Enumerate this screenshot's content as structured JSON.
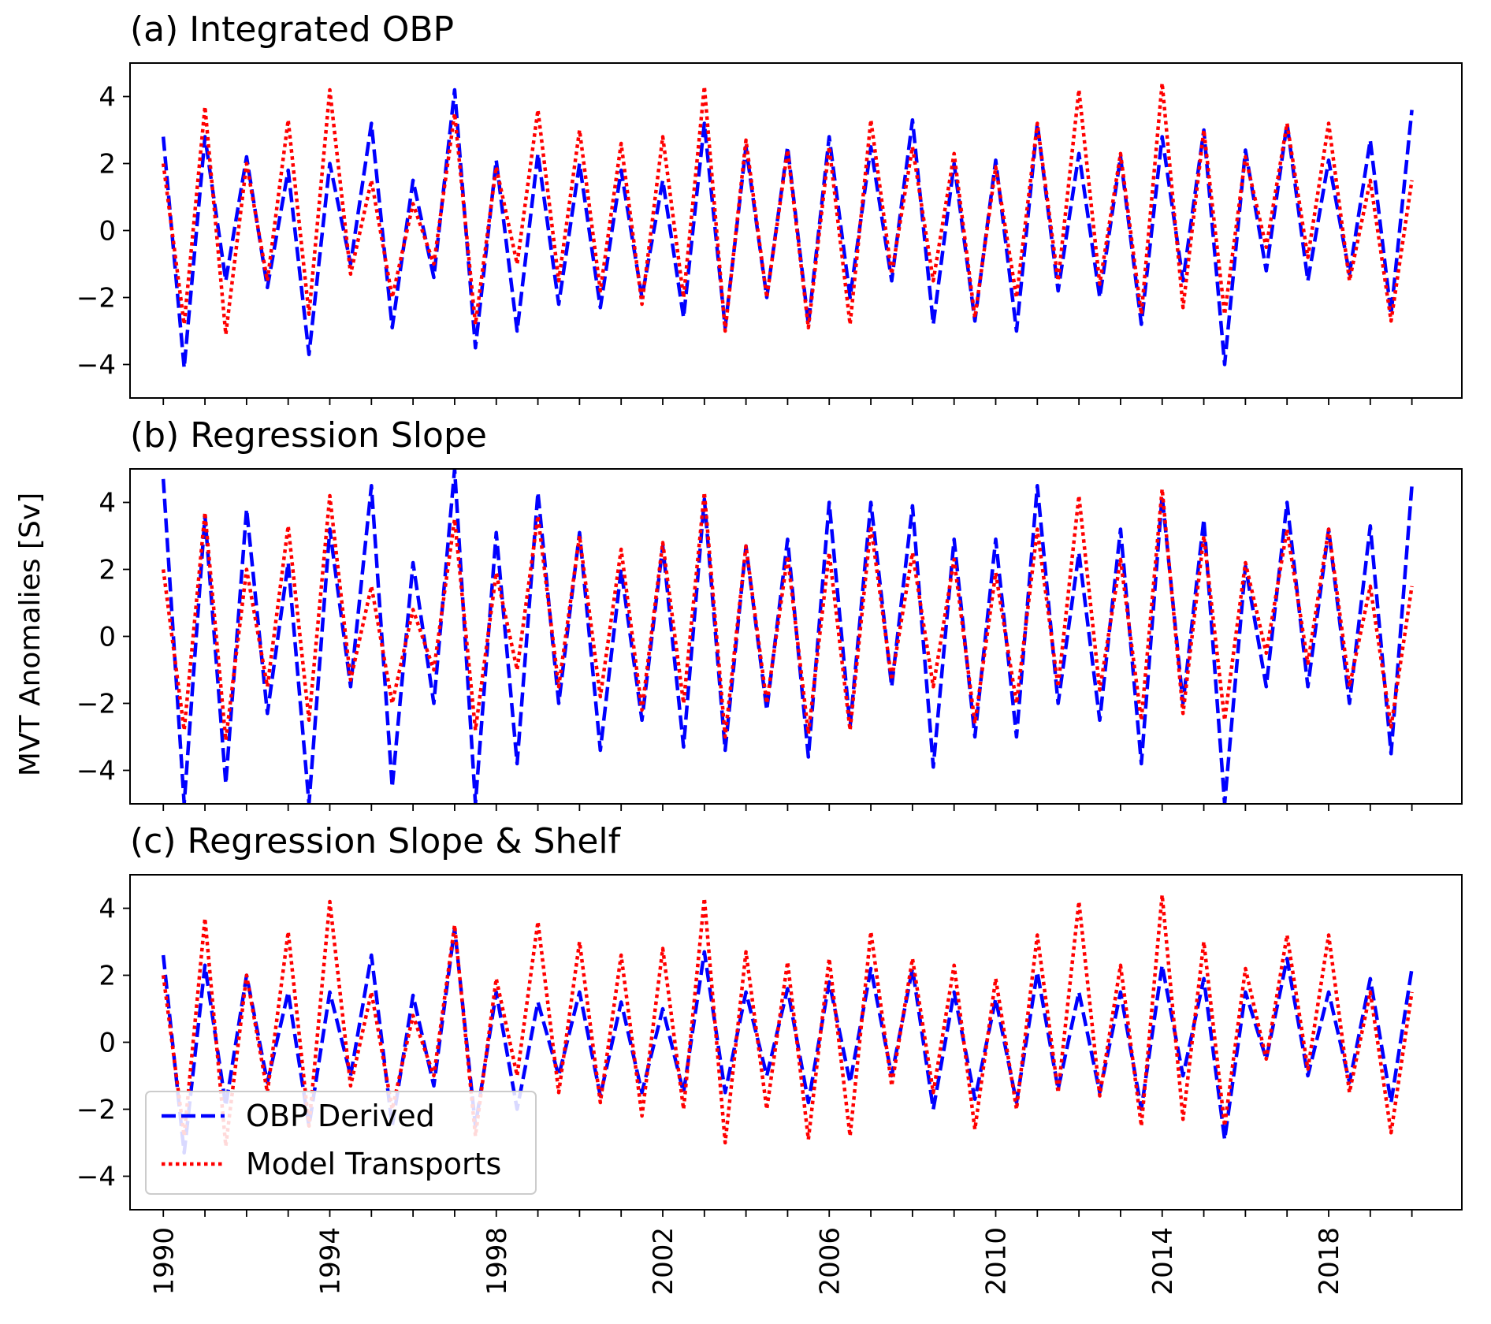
{
  "chart_data": [
    {
      "type": "line",
      "panel": "a",
      "title": "(a) Integrated OBP",
      "xlabel": "",
      "ylabel": "",
      "ylim": [
        -5,
        5
      ],
      "yticks": [
        -4,
        -2,
        0,
        2,
        4
      ],
      "series": [
        {
          "name": "OBP Derived",
          "color": "#0000ff",
          "style": "dashed",
          "x": [
            1990.0,
            1990.5,
            1991.0,
            1991.5,
            1992.0,
            1992.5,
            1993.0,
            1993.5,
            1994.0,
            1994.5,
            1995.0,
            1995.5,
            1996.0,
            1996.5,
            1997.0,
            1997.5,
            1998.0,
            1998.5,
            1999.0,
            1999.5,
            2000.0,
            2000.5,
            2001.0,
            2001.5,
            2002.0,
            2002.5,
            2003.0,
            2003.5,
            2004.0,
            2004.5,
            2005.0,
            2005.5,
            2006.0,
            2006.5,
            2007.0,
            2007.5,
            2008.0,
            2008.5,
            2009.0,
            2009.5,
            2010.0,
            2010.5,
            2011.0,
            2011.5,
            2012.0,
            2012.5,
            2013.0,
            2013.5,
            2014.0,
            2014.5,
            2015.0,
            2015.5,
            2016.0,
            2016.5,
            2017.0,
            2017.5,
            2018.0,
            2018.5,
            2019.0,
            2019.5,
            2020.0
          ],
          "y": [
            2.8,
            -4.1,
            2.8,
            -1.5,
            2.2,
            -1.7,
            1.8,
            -3.7,
            2.0,
            -1.0,
            3.2,
            -2.9,
            1.5,
            -1.4,
            4.2,
            -3.5,
            2.1,
            -3.0,
            2.3,
            -2.2,
            2.0,
            -2.3,
            1.8,
            -2.0,
            1.5,
            -2.6,
            3.2,
            -2.9,
            2.5,
            -2.0,
            2.5,
            -2.8,
            2.8,
            -2.0,
            2.5,
            -1.5,
            3.3,
            -2.8,
            2.0,
            -2.7,
            2.1,
            -3.0,
            3.2,
            -1.8,
            2.3,
            -2.0,
            2.2,
            -2.8,
            2.8,
            -1.5,
            3.0,
            -4.0,
            2.4,
            -1.2,
            3.2,
            -1.5,
            2.1,
            -1.3,
            2.7,
            -2.5,
            3.6
          ]
        },
        {
          "name": "Model Transports",
          "color": "#ff0000",
          "style": "dotted",
          "x": [
            1990.0,
            1990.5,
            1991.0,
            1991.5,
            1992.0,
            1992.5,
            1993.0,
            1993.5,
            1994.0,
            1994.5,
            1995.0,
            1995.5,
            1996.0,
            1996.5,
            1997.0,
            1997.5,
            1998.0,
            1998.5,
            1999.0,
            1999.5,
            2000.0,
            2000.5,
            2001.0,
            2001.5,
            2002.0,
            2002.5,
            2003.0,
            2003.5,
            2004.0,
            2004.5,
            2005.0,
            2005.5,
            2006.0,
            2006.5,
            2007.0,
            2007.5,
            2008.0,
            2008.5,
            2009.0,
            2009.5,
            2010.0,
            2010.5,
            2011.0,
            2011.5,
            2012.0,
            2012.5,
            2013.0,
            2013.5,
            2014.0,
            2014.5,
            2015.0,
            2015.5,
            2016.0,
            2016.5,
            2017.0,
            2017.5,
            2018.0,
            2018.5,
            2019.0,
            2019.5,
            2020.0
          ],
          "y": [
            2.0,
            -2.8,
            3.7,
            -3.1,
            2.0,
            -1.5,
            3.3,
            -2.5,
            4.2,
            -1.3,
            1.5,
            -2.0,
            0.8,
            -1.0,
            3.5,
            -2.8,
            1.9,
            -1.0,
            3.6,
            -1.5,
            3.0,
            -1.8,
            2.6,
            -2.2,
            2.8,
            -2.0,
            4.3,
            -3.0,
            2.7,
            -2.0,
            2.4,
            -2.9,
            2.5,
            -2.8,
            3.3,
            -1.3,
            2.5,
            -1.5,
            2.3,
            -2.6,
            1.9,
            -2.0,
            3.2,
            -1.5,
            4.2,
            -1.6,
            2.3,
            -2.5,
            4.4,
            -2.3,
            3.0,
            -2.5,
            2.2,
            -0.5,
            3.2,
            -0.8,
            3.2,
            -1.5,
            1.5,
            -2.7,
            1.5
          ]
        }
      ]
    },
    {
      "type": "line",
      "panel": "b",
      "title": "(b) Regression Slope",
      "xlabel": "",
      "ylabel": "MVT Anomalies [Sv]",
      "ylim": [
        -5,
        5
      ],
      "yticks": [
        -4,
        -2,
        0,
        2,
        4
      ],
      "series": [
        {
          "name": "OBP Derived",
          "color": "#0000ff",
          "style": "dashed",
          "x": [
            1990.0,
            1990.5,
            1991.0,
            1991.5,
            1992.0,
            1992.5,
            1993.0,
            1993.5,
            1994.0,
            1994.5,
            1995.0,
            1995.5,
            1996.0,
            1996.5,
            1997.0,
            1997.5,
            1998.0,
            1998.5,
            1999.0,
            1999.5,
            2000.0,
            2000.5,
            2001.0,
            2001.5,
            2002.0,
            2002.5,
            2003.0,
            2003.5,
            2004.0,
            2004.5,
            2005.0,
            2005.5,
            2006.0,
            2006.5,
            2007.0,
            2007.5,
            2008.0,
            2008.5,
            2009.0,
            2009.5,
            2010.0,
            2010.5,
            2011.0,
            2011.5,
            2012.0,
            2012.5,
            2013.0,
            2013.5,
            2014.0,
            2014.5,
            2015.0,
            2015.5,
            2016.0,
            2016.5,
            2017.0,
            2017.5,
            2018.0,
            2018.5,
            2019.0,
            2019.5,
            2020.0
          ],
          "y": [
            4.7,
            -5.0,
            3.6,
            -4.4,
            3.8,
            -2.3,
            2.2,
            -5.0,
            3.2,
            -1.5,
            4.5,
            -4.5,
            2.2,
            -2.0,
            5.0,
            -5.0,
            3.1,
            -3.8,
            4.3,
            -2.0,
            3.1,
            -3.4,
            2.0,
            -2.5,
            2.7,
            -3.3,
            4.1,
            -3.4,
            2.7,
            -2.2,
            2.9,
            -3.6,
            4.0,
            -2.7,
            4.0,
            -1.5,
            3.9,
            -3.9,
            2.9,
            -3.0,
            2.9,
            -3.0,
            4.5,
            -2.0,
            2.5,
            -2.5,
            3.2,
            -3.8,
            4.2,
            -2.0,
            3.5,
            -5.0,
            2.1,
            -1.5,
            4.0,
            -1.5,
            3.2,
            -2.0,
            3.3,
            -3.5,
            4.5
          ]
        },
        {
          "name": "Model Transports",
          "color": "#ff0000",
          "style": "dotted",
          "x": [
            1990.0,
            1990.5,
            1991.0,
            1991.5,
            1992.0,
            1992.5,
            1993.0,
            1993.5,
            1994.0,
            1994.5,
            1995.0,
            1995.5,
            1996.0,
            1996.5,
            1997.0,
            1997.5,
            1998.0,
            1998.5,
            1999.0,
            1999.5,
            2000.0,
            2000.5,
            2001.0,
            2001.5,
            2002.0,
            2002.5,
            2003.0,
            2003.5,
            2004.0,
            2004.5,
            2005.0,
            2005.5,
            2006.0,
            2006.5,
            2007.0,
            2007.5,
            2008.0,
            2008.5,
            2009.0,
            2009.5,
            2010.0,
            2010.5,
            2011.0,
            2011.5,
            2012.0,
            2012.5,
            2013.0,
            2013.5,
            2014.0,
            2014.5,
            2015.0,
            2015.5,
            2016.0,
            2016.5,
            2017.0,
            2017.5,
            2018.0,
            2018.5,
            2019.0,
            2019.5,
            2020.0
          ],
          "y": [
            2.0,
            -2.8,
            3.7,
            -3.1,
            2.0,
            -1.5,
            3.3,
            -2.5,
            4.2,
            -1.3,
            1.5,
            -2.0,
            0.8,
            -1.0,
            3.5,
            -2.8,
            1.9,
            -1.0,
            3.6,
            -1.5,
            3.0,
            -1.8,
            2.6,
            -2.2,
            2.8,
            -2.0,
            4.3,
            -3.0,
            2.7,
            -2.0,
            2.4,
            -2.9,
            2.5,
            -2.8,
            3.3,
            -1.3,
            2.5,
            -1.5,
            2.3,
            -2.6,
            1.9,
            -2.0,
            3.2,
            -1.5,
            4.2,
            -1.6,
            2.3,
            -2.5,
            4.4,
            -2.3,
            3.0,
            -2.5,
            2.2,
            -0.5,
            3.2,
            -0.8,
            3.2,
            -1.5,
            1.5,
            -2.7,
            1.5
          ]
        }
      ]
    },
    {
      "type": "line",
      "panel": "c",
      "title": "(c) Regression Slope & Shelf",
      "xlabel": "",
      "ylabel": "",
      "ylim": [
        -5,
        5
      ],
      "yticks": [
        -4,
        -2,
        0,
        2,
        4
      ],
      "xticks": [
        "1990",
        "1994",
        "1998",
        "2002",
        "2006",
        "2010",
        "2014",
        "2018"
      ],
      "legend": {
        "location": "lower-left",
        "entries": [
          "OBP Derived",
          "Model Transports"
        ]
      },
      "series": [
        {
          "name": "OBP Derived",
          "color": "#0000ff",
          "style": "dashed",
          "x": [
            1990.0,
            1990.5,
            1991.0,
            1991.5,
            1992.0,
            1992.5,
            1993.0,
            1993.5,
            1994.0,
            1994.5,
            1995.0,
            1995.5,
            1996.0,
            1996.5,
            1997.0,
            1997.5,
            1998.0,
            1998.5,
            1999.0,
            1999.5,
            2000.0,
            2000.5,
            2001.0,
            2001.5,
            2002.0,
            2002.5,
            2003.0,
            2003.5,
            2004.0,
            2004.5,
            2005.0,
            2005.5,
            2006.0,
            2006.5,
            2007.0,
            2007.5,
            2008.0,
            2008.5,
            2009.0,
            2009.5,
            2010.0,
            2010.5,
            2011.0,
            2011.5,
            2012.0,
            2012.5,
            2013.0,
            2013.5,
            2014.0,
            2014.5,
            2015.0,
            2015.5,
            2016.0,
            2016.5,
            2017.0,
            2017.5,
            2018.0,
            2018.5,
            2019.0,
            2019.5,
            2020.0
          ],
          "y": [
            2.6,
            -3.3,
            2.3,
            -1.9,
            2.0,
            -1.2,
            1.5,
            -2.5,
            1.5,
            -1.0,
            2.6,
            -2.5,
            1.4,
            -1.3,
            3.4,
            -2.5,
            1.5,
            -2.0,
            1.2,
            -1.0,
            1.5,
            -1.6,
            1.2,
            -1.5,
            1.0,
            -1.5,
            2.7,
            -1.5,
            1.5,
            -1.0,
            1.6,
            -1.8,
            1.8,
            -1.2,
            2.2,
            -1.0,
            2.2,
            -2.0,
            1.5,
            -1.7,
            1.3,
            -1.8,
            2.1,
            -1.4,
            1.5,
            -1.5,
            1.5,
            -2.0,
            2.3,
            -1.0,
            1.9,
            -2.9,
            1.5,
            -0.5,
            2.5,
            -1.0,
            1.5,
            -1.2,
            1.9,
            -1.8,
            2.2
          ]
        },
        {
          "name": "Model Transports",
          "color": "#ff0000",
          "style": "dotted",
          "x": [
            1990.0,
            1990.5,
            1991.0,
            1991.5,
            1992.0,
            1992.5,
            1993.0,
            1993.5,
            1994.0,
            1994.5,
            1995.0,
            1995.5,
            1996.0,
            1996.5,
            1997.0,
            1997.5,
            1998.0,
            1998.5,
            1999.0,
            1999.5,
            2000.0,
            2000.5,
            2001.0,
            2001.5,
            2002.0,
            2002.5,
            2003.0,
            2003.5,
            2004.0,
            2004.5,
            2005.0,
            2005.5,
            2006.0,
            2006.5,
            2007.0,
            2007.5,
            2008.0,
            2008.5,
            2009.0,
            2009.5,
            2010.0,
            2010.5,
            2011.0,
            2011.5,
            2012.0,
            2012.5,
            2013.0,
            2013.5,
            2014.0,
            2014.5,
            2015.0,
            2015.5,
            2016.0,
            2016.5,
            2017.0,
            2017.5,
            2018.0,
            2018.5,
            2019.0,
            2019.5,
            2020.0
          ],
          "y": [
            2.0,
            -2.8,
            3.7,
            -3.1,
            2.0,
            -1.5,
            3.3,
            -2.5,
            4.2,
            -1.3,
            1.5,
            -2.0,
            0.8,
            -1.0,
            3.5,
            -2.8,
            1.9,
            -1.0,
            3.6,
            -1.5,
            3.0,
            -1.8,
            2.6,
            -2.2,
            2.8,
            -2.0,
            4.3,
            -3.0,
            2.7,
            -2.0,
            2.4,
            -2.9,
            2.5,
            -2.8,
            3.3,
            -1.3,
            2.5,
            -1.5,
            2.3,
            -2.6,
            1.9,
            -2.0,
            3.2,
            -1.5,
            4.2,
            -1.6,
            2.3,
            -2.5,
            4.4,
            -2.3,
            3.0,
            -2.5,
            2.2,
            -0.5,
            3.2,
            -0.8,
            3.2,
            -1.5,
            1.5,
            -2.7,
            1.5
          ]
        }
      ]
    }
  ]
}
